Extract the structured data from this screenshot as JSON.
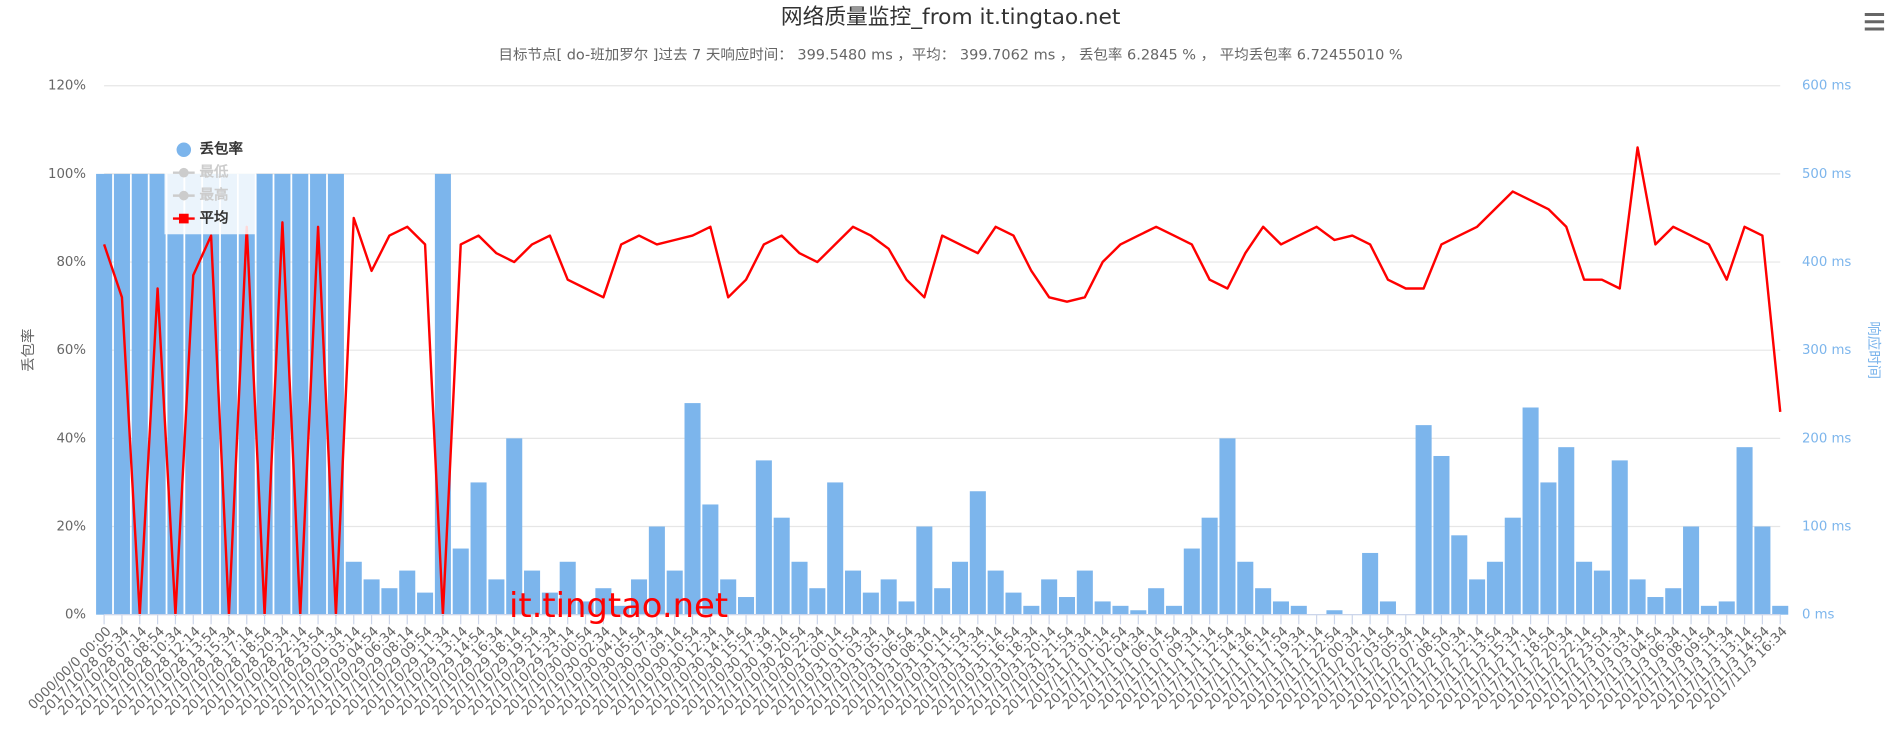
{
  "chart_data": {
    "type": "bar-line",
    "title": "网络质量监控_from it.tingtao.net",
    "subtitle": "目标节点[ do-班加罗尔 ]过去 7 天响应时间： 399.5480 ms ，平均： 399.7062 ms ， 丢包率 6.2845 % ， 平均丢包率 6.72455010 %",
    "ylabel": "丢包率",
    "y2label": "响应时间",
    "watermark": "it.tingtao.net",
    "categories": [
      "0000/00/0 00:00",
      "2017/10/28 05:34",
      "2017/10/28 07:14",
      "2017/10/28 08:54",
      "2017/10/28 10:34",
      "2017/10/28 12:14",
      "2017/10/28 13:54",
      "2017/10/28 15:34",
      "2017/10/28 17:14",
      "2017/10/28 18:54",
      "2017/10/28 20:34",
      "2017/10/28 22:14",
      "2017/10/28 23:54",
      "2017/10/29 01:34",
      "2017/10/29 03:14",
      "2017/10/29 04:54",
      "2017/10/29 06:34",
      "2017/10/29 08:14",
      "2017/10/29 09:54",
      "2017/10/29 11:34",
      "2017/10/29 13:14",
      "2017/10/29 14:54",
      "2017/10/29 16:34",
      "2017/10/29 18:14",
      "2017/10/29 19:54",
      "2017/10/29 21:34",
      "2017/10/29 23:14",
      "2017/10/30 00:54",
      "2017/10/30 02:34",
      "2017/10/30 04:14",
      "2017/10/30 05:54",
      "2017/10/30 07:34",
      "2017/10/30 09:14",
      "2017/10/30 10:54",
      "2017/10/30 12:34",
      "2017/10/30 14:14",
      "2017/10/30 15:54",
      "2017/10/30 17:34",
      "2017/10/30 19:14",
      "2017/10/30 20:54",
      "2017/10/30 22:34",
      "2017/10/31 00:14",
      "2017/10/31 01:54",
      "2017/10/31 03:34",
      "2017/10/31 05:14",
      "2017/10/31 06:54",
      "2017/10/31 08:34",
      "2017/10/31 10:14",
      "2017/10/31 11:54",
      "2017/10/31 13:34",
      "2017/10/31 15:14",
      "2017/10/31 16:54",
      "2017/10/31 18:34",
      "2017/10/31 20:14",
      "2017/10/31 21:54",
      "2017/10/31 23:34",
      "2017/11/1 01:14",
      "2017/11/1 02:54",
      "2017/11/1 04:34",
      "2017/11/1 06:14",
      "2017/11/1 07:54",
      "2017/11/1 09:34",
      "2017/11/1 11:14",
      "2017/11/1 12:54",
      "2017/11/1 14:34",
      "2017/11/1 16:14",
      "2017/11/1 17:54",
      "2017/11/1 19:34",
      "2017/11/1 21:14",
      "2017/11/1 22:54",
      "2017/11/2 00:34",
      "2017/11/2 02:14",
      "2017/11/2 03:54",
      "2017/11/2 05:34",
      "2017/11/2 07:14",
      "2017/11/2 08:54",
      "2017/11/2 10:34",
      "2017/11/2 12:14",
      "2017/11/2 13:54",
      "2017/11/2 15:34",
      "2017/11/2 17:14",
      "2017/11/2 18:54",
      "2017/11/2 20:34",
      "2017/11/2 22:14",
      "2017/11/2 23:54",
      "2017/11/3 01:34",
      "2017/11/3 03:14",
      "2017/11/3 04:54",
      "2017/11/3 06:34",
      "2017/11/3 08:14",
      "2017/11/3 09:54",
      "2017/11/3 11:34",
      "2017/11/3 13:14",
      "2017/11/3 14:54",
      "2017/11/3 16:34"
    ],
    "series": [
      {
        "name": "丢包率",
        "color": "#7cb5ec",
        "type": "bar",
        "visible": true,
        "values": [
          100,
          100,
          100,
          100,
          100,
          100,
          100,
          100,
          100,
          100,
          100,
          100,
          100,
          100,
          12,
          8,
          6,
          10,
          5,
          100,
          15,
          30,
          8,
          40,
          10,
          5,
          12,
          3,
          6,
          2,
          8,
          20,
          10,
          48,
          25,
          8,
          4,
          35,
          22,
          12,
          6,
          30,
          10,
          5,
          8,
          3,
          20,
          6,
          12,
          28,
          10,
          5,
          2,
          8,
          4,
          10,
          3,
          2,
          1,
          6,
          2,
          15,
          22,
          40,
          12,
          6,
          3,
          2,
          0,
          1,
          0,
          14,
          3,
          0,
          43,
          36,
          18,
          8,
          12,
          22,
          47,
          30,
          38,
          12,
          10,
          35,
          8,
          4,
          6,
          20,
          2,
          3,
          38,
          20,
          2
        ]
      },
      {
        "name": "最低",
        "color": "#cccccc",
        "type": "line",
        "visible": false
      },
      {
        "name": "最高",
        "color": "#cccccc",
        "type": "line",
        "visible": false
      },
      {
        "name": "平均",
        "color": "#ff0000",
        "type": "line",
        "axis": "y2",
        "visible": true,
        "values": [
          420,
          360,
          0,
          370,
          0,
          385,
          430,
          0,
          440,
          0,
          445,
          0,
          440,
          0,
          450,
          390,
          430,
          440,
          420,
          0,
          420,
          430,
          410,
          400,
          420,
          430,
          380,
          370,
          360,
          420,
          430,
          420,
          425,
          430,
          440,
          360,
          380,
          420,
          430,
          410,
          400,
          420,
          440,
          430,
          415,
          380,
          360,
          430,
          420,
          410,
          440,
          430,
          390,
          360,
          355,
          360,
          400,
          420,
          430,
          440,
          430,
          420,
          380,
          370,
          410,
          440,
          420,
          430,
          440,
          425,
          430,
          420,
          380,
          370,
          370,
          420,
          430,
          440,
          460,
          480,
          470,
          460,
          440,
          380,
          380,
          370,
          530,
          420,
          440,
          430,
          420,
          380,
          440,
          430,
          230
        ]
      }
    ],
    "ylim": [
      0,
      120
    ],
    "yticks": [
      {
        "value": 0,
        "label": "0%"
      },
      {
        "value": 20,
        "label": "20%"
      },
      {
        "value": 40,
        "label": "40%"
      },
      {
        "value": 60,
        "label": "60%"
      },
      {
        "value": 80,
        "label": "80%"
      },
      {
        "value": 100,
        "label": "100%"
      },
      {
        "value": 120,
        "label": "120%"
      }
    ],
    "y2lim": [
      0,
      600
    ],
    "y2ticks": [
      {
        "value": 0,
        "label": "0 ms"
      },
      {
        "value": 100,
        "label": "100 ms"
      },
      {
        "value": 200,
        "label": "200 ms"
      },
      {
        "value": 300,
        "label": "300 ms"
      },
      {
        "value": 400,
        "label": "400 ms"
      },
      {
        "value": 500,
        "label": "500 ms"
      },
      {
        "value": 600,
        "label": "600 ms"
      }
    ],
    "grid": true,
    "legend": "top-left"
  }
}
